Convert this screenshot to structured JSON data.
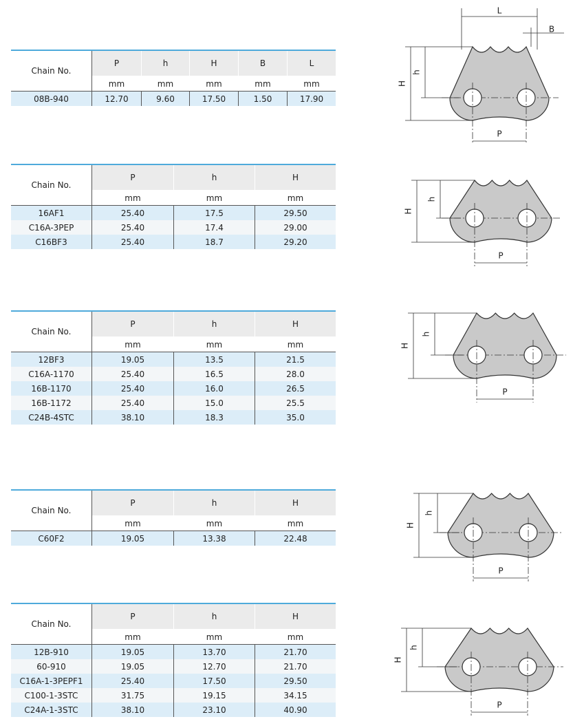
{
  "tables": [
    {
      "headers": [
        "Chain No.",
        "P",
        "h",
        "H",
        "B",
        "L"
      ],
      "units": [
        "mm",
        "mm",
        "mm",
        "mm",
        "mm"
      ],
      "rows": [
        [
          "08B-940",
          "12.70",
          "9.60",
          "17.50",
          "1.50",
          "17.90"
        ]
      ]
    },
    {
      "headers": [
        "Chain No.",
        "P",
        "h",
        "H"
      ],
      "units": [
        "mm",
        "mm",
        "mm"
      ],
      "rows": [
        [
          "16AF1",
          "25.40",
          "17.5",
          "29.50"
        ],
        [
          "C16A-3PEP",
          "25.40",
          "17.4",
          "29.00"
        ],
        [
          "C16BF3",
          "25.40",
          "18.7",
          "29.20"
        ]
      ]
    },
    {
      "headers": [
        "Chain No.",
        "P",
        "h",
        "H"
      ],
      "units": [
        "mm",
        "mm",
        "mm"
      ],
      "rows": [
        [
          "12BF3",
          "19.05",
          "13.5",
          "21.5"
        ],
        [
          "C16A-1170",
          "25.40",
          "16.5",
          "28.0"
        ],
        [
          "16B-1170",
          "25.40",
          "16.0",
          "26.5"
        ],
        [
          "16B-1172",
          "25.40",
          "15.0",
          "25.5"
        ],
        [
          "C24B-4STC",
          "38.10",
          "18.3",
          "35.0"
        ]
      ]
    },
    {
      "headers": [
        "Chain No.",
        "P",
        "h",
        "H"
      ],
      "units": [
        "mm",
        "mm",
        "mm"
      ],
      "rows": [
        [
          "C60F2",
          "19.05",
          "13.38",
          "22.48"
        ]
      ]
    },
    {
      "headers": [
        "Chain No.",
        "P",
        "h",
        "H"
      ],
      "units": [
        "mm",
        "mm",
        "mm"
      ],
      "rows": [
        [
          "12B-910",
          "19.05",
          "13.70",
          "21.70"
        ],
        [
          "60-910",
          "19.05",
          "12.70",
          "21.70"
        ],
        [
          "C16A-1-3PEPF1",
          "25.40",
          "17.50",
          "29.50"
        ],
        [
          "C100-1-3STC",
          "31.75",
          "19.15",
          "34.15"
        ],
        [
          "C24A-1-3STC",
          "38.10",
          "23.10",
          "40.90"
        ]
      ]
    }
  ],
  "diagrams": [
    {
      "labels": {
        "P": "P",
        "h": "h",
        "H": "H",
        "L": "L",
        "B": "B"
      }
    },
    {
      "labels": {
        "P": "P",
        "h": "h",
        "H": "H"
      }
    },
    {
      "labels": {
        "P": "P",
        "h": "h",
        "H": "H"
      }
    },
    {
      "labels": {
        "P": "P",
        "h": "h",
        "H": "H"
      }
    },
    {
      "labels": {
        "P": "P",
        "h": "h",
        "H": "H"
      }
    }
  ]
}
